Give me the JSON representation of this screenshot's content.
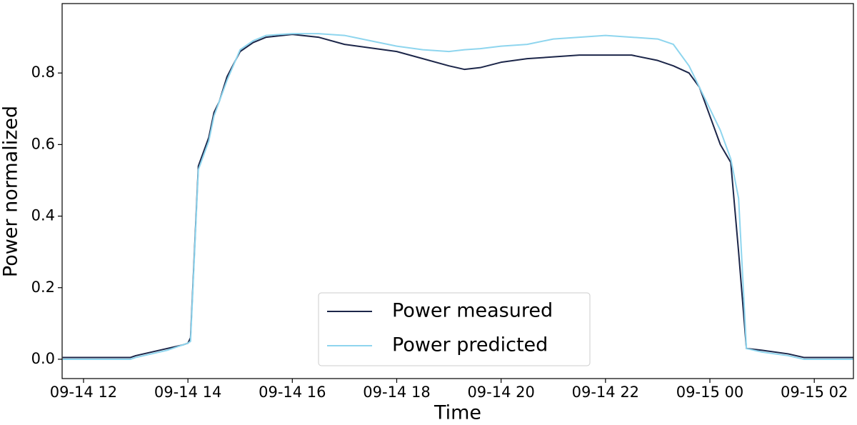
{
  "chart_data": {
    "type": "line",
    "x_label": "Time",
    "y_label": "Power normalized",
    "x": [
      11.6,
      12.9,
      13.0,
      13.3,
      13.6,
      13.9,
      14.0,
      14.05,
      14.2,
      14.4,
      14.5,
      14.6,
      14.75,
      15.0,
      15.25,
      15.5,
      16.0,
      16.5,
      17.0,
      17.5,
      18.0,
      18.5,
      19.0,
      19.3,
      19.6,
      20.0,
      20.5,
      21.0,
      21.5,
      22.0,
      22.5,
      23.0,
      23.3,
      23.6,
      23.8,
      24.0,
      24.2,
      24.4,
      24.55,
      24.7,
      25.0,
      25.5,
      25.8,
      26.75
    ],
    "series": [
      {
        "name": "Power measured",
        "color": "#1c2649",
        "values": [
          0.005,
          0.005,
          0.01,
          0.02,
          0.03,
          0.04,
          0.045,
          0.06,
          0.54,
          0.62,
          0.69,
          0.72,
          0.79,
          0.86,
          0.885,
          0.9,
          0.908,
          0.9,
          0.88,
          0.87,
          0.86,
          0.84,
          0.82,
          0.81,
          0.815,
          0.83,
          0.84,
          0.845,
          0.85,
          0.85,
          0.85,
          0.835,
          0.82,
          0.8,
          0.76,
          0.68,
          0.6,
          0.55,
          0.3,
          0.03,
          0.025,
          0.015,
          0.005,
          0.005
        ]
      },
      {
        "name": "Power predicted",
        "color": "#8ed5ee",
        "values": [
          0,
          0,
          0.005,
          0.015,
          0.025,
          0.04,
          0.045,
          0.05,
          0.53,
          0.61,
          0.68,
          0.72,
          0.78,
          0.865,
          0.89,
          0.905,
          0.91,
          0.91,
          0.905,
          0.89,
          0.875,
          0.865,
          0.86,
          0.865,
          0.868,
          0.875,
          0.88,
          0.895,
          0.9,
          0.905,
          0.9,
          0.895,
          0.88,
          0.82,
          0.76,
          0.7,
          0.64,
          0.56,
          0.45,
          0.03,
          0.02,
          0.01,
          0,
          0
        ]
      }
    ],
    "xlim": [
      11.59,
      26.75
    ],
    "xticks": [
      {
        "value": 12,
        "label": "09-14 12"
      },
      {
        "value": 14,
        "label": "09-14 14"
      },
      {
        "value": 16,
        "label": "09-14 16"
      },
      {
        "value": 18,
        "label": "09-14 18"
      },
      {
        "value": 20,
        "label": "09-14 20"
      },
      {
        "value": 22,
        "label": "09-14 22"
      },
      {
        "value": 24,
        "label": "09-15 00"
      },
      {
        "value": 26,
        "label": "09-15 02"
      }
    ],
    "ylim": [
      -0.054,
      0.994
    ],
    "yticks": [
      {
        "value": 0,
        "label": "0.0"
      },
      0.2,
      0.4,
      0.6,
      0.8
    ],
    "grid": false,
    "legend": "lower center"
  }
}
